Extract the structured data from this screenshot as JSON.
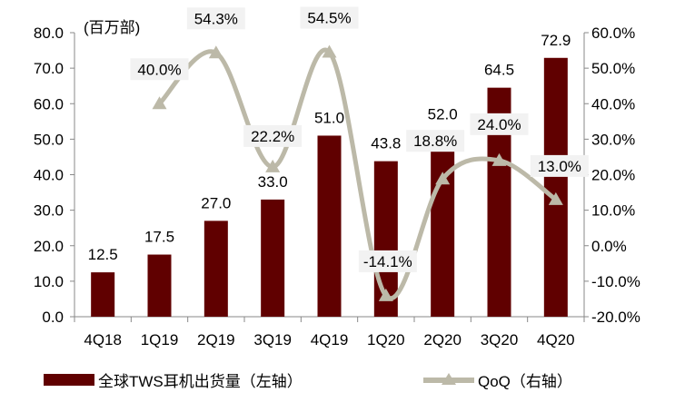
{
  "chart_data": {
    "type": "bar+line",
    "unit_label": "(百万部)",
    "categories": [
      "4Q18",
      "1Q19",
      "2Q19",
      "3Q19",
      "4Q19",
      "1Q20",
      "2Q20",
      "3Q20",
      "4Q20"
    ],
    "series": [
      {
        "name": "全球TWS耳机出货量（左轴）",
        "type": "bar",
        "axis": "left",
        "values": [
          12.5,
          17.5,
          27.0,
          33.0,
          51.0,
          43.8,
          52.0,
          64.5,
          72.9
        ],
        "labels": [
          "12.5",
          "17.5",
          "27.0",
          "33.0",
          "51.0",
          "43.8",
          "52.0",
          "64.5",
          "72.9"
        ]
      },
      {
        "name": "QoQ（右轴）",
        "type": "line",
        "axis": "right",
        "smooth": true,
        "marker": "triangle",
        "values": [
          null,
          40.0,
          54.3,
          22.2,
          54.5,
          -14.1,
          18.8,
          24.0,
          13.0
        ],
        "labels": [
          "",
          "40.0%",
          "54.3%",
          "22.2%",
          "54.5%",
          "-14.1%",
          "18.8%",
          "24.0%",
          "13.0%"
        ]
      }
    ],
    "left_axis": {
      "range": [
        0,
        80
      ],
      "ticks": [
        "0.0",
        "10.0",
        "20.0",
        "30.0",
        "40.0",
        "50.0",
        "60.0",
        "70.0",
        "80.0"
      ]
    },
    "right_axis": {
      "range": [
        -20,
        60
      ],
      "ticks": [
        "-20.0%",
        "-10.0%",
        "0.0%",
        "10.0%",
        "20.0%",
        "30.0%",
        "40.0%",
        "50.0%",
        "60.0%"
      ]
    },
    "grid": false,
    "legend": "bottom",
    "colors": {
      "bar": "#600000",
      "line": "#BCB9A8",
      "label_bg": "#F2F2F2"
    }
  }
}
